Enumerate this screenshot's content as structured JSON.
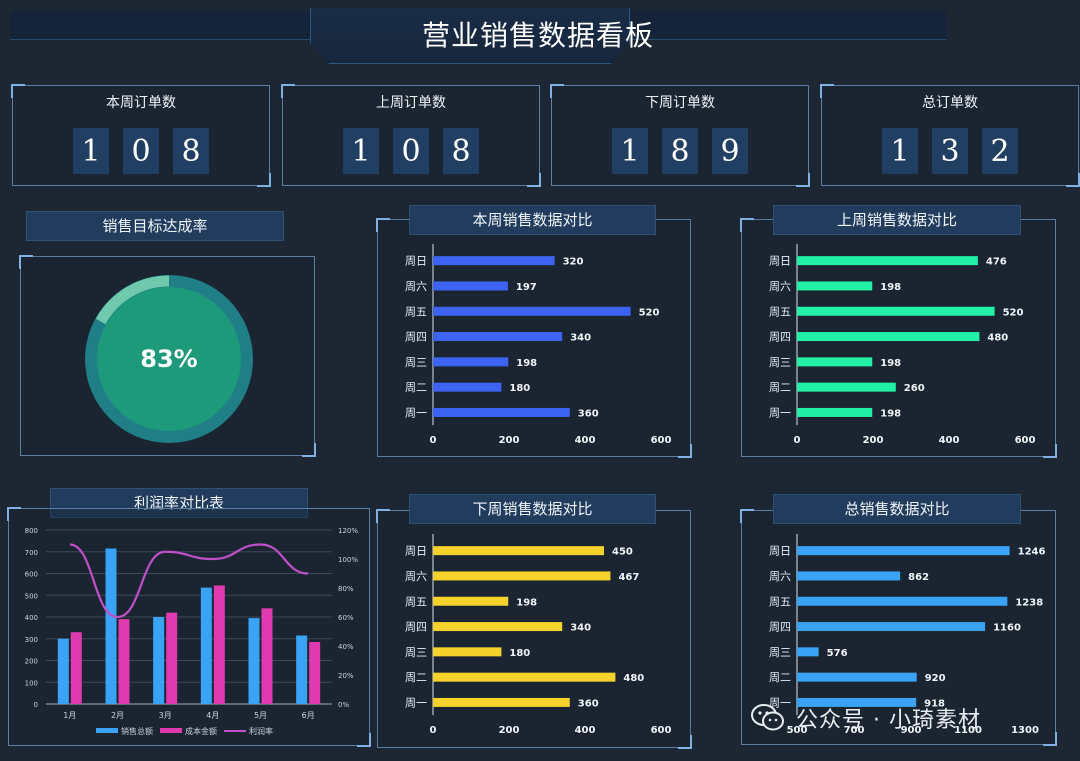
{
  "header": {
    "title": "营业销售数据看板"
  },
  "kpis": [
    {
      "label": "本周订单数",
      "digits": [
        "1",
        "0",
        "8"
      ]
    },
    {
      "label": "上周订单数",
      "digits": [
        "1",
        "0",
        "8"
      ]
    },
    {
      "label": "下周订单数",
      "digits": [
        "1",
        "8",
        "9"
      ]
    },
    {
      "label": "总订单数",
      "digits": [
        "1",
        "3",
        "2"
      ]
    }
  ],
  "gauge": {
    "title": "销售目标达成率",
    "value": 0.83,
    "label": "83%"
  },
  "panels": {
    "this_week": "本周销售数据对比",
    "last_week": "上周销售数据对比",
    "next_week": "下周销售数据对比",
    "total": "总销售数据对比",
    "profit": "利润率对比表"
  },
  "chart_data": [
    {
      "type": "bar",
      "orientation": "horizontal",
      "title": "本周销售数据对比",
      "categories": [
        "周日",
        "周六",
        "周五",
        "周四",
        "周三",
        "周二",
        "周一"
      ],
      "values": [
        320,
        197,
        520,
        340,
        198,
        180,
        360
      ],
      "xlim": [
        0,
        600
      ],
      "xticks": [
        0,
        200,
        400,
        600
      ],
      "color": "#3d63f2"
    },
    {
      "type": "bar",
      "orientation": "horizontal",
      "title": "上周销售数据对比",
      "categories": [
        "周日",
        "周六",
        "周五",
        "周四",
        "周三",
        "周二",
        "周一"
      ],
      "values": [
        476,
        198,
        520,
        480,
        198,
        260,
        198
      ],
      "xlim": [
        0,
        600
      ],
      "xticks": [
        0,
        200,
        400,
        600
      ],
      "color": "#21f0a6"
    },
    {
      "type": "bar",
      "orientation": "horizontal",
      "title": "下周销售数据对比",
      "categories": [
        "周日",
        "周六",
        "周五",
        "周四",
        "周三",
        "周二",
        "周一"
      ],
      "values": [
        450,
        467,
        198,
        340,
        180,
        480,
        360
      ],
      "xlim": [
        0,
        600
      ],
      "xticks": [
        0,
        200,
        400,
        600
      ],
      "color": "#f5d22c"
    },
    {
      "type": "bar",
      "orientation": "horizontal",
      "title": "总销售数据对比",
      "categories": [
        "周日",
        "周六",
        "周五",
        "周四",
        "周三",
        "周二",
        "周一"
      ],
      "values": [
        1246,
        862,
        1238,
        1160,
        576,
        920,
        918
      ],
      "xlim": [
        500,
        1300
      ],
      "xticks": [
        500,
        700,
        900,
        1100,
        1300
      ],
      "color": "#3aa3f5"
    },
    {
      "type": "bar",
      "title": "利润率对比表",
      "categories": [
        "1月",
        "2月",
        "3月",
        "4月",
        "5月",
        "6月"
      ],
      "series": [
        {
          "name": "销售总额",
          "values": [
            300,
            715,
            400,
            535,
            395,
            315
          ],
          "axis": "left",
          "color": "#3aa3f5"
        },
        {
          "name": "成本金额",
          "values": [
            330,
            390,
            420,
            545,
            440,
            285
          ],
          "axis": "left",
          "color": "#e03ab0"
        },
        {
          "name": "利润率",
          "type": "line",
          "values": [
            110,
            60,
            105,
            100,
            110,
            90
          ],
          "unit": "%",
          "axis": "right",
          "color": "#c04fc8"
        }
      ],
      "ylim": [
        0,
        800
      ],
      "yticks": [
        0,
        100,
        200,
        300,
        400,
        500,
        600,
        700,
        800
      ],
      "y2lim": [
        0,
        120
      ],
      "y2ticks": [
        "0%",
        "20%",
        "40%",
        "60%",
        "80%",
        "100%",
        "120%"
      ],
      "grid": true,
      "legend": "bottom"
    }
  ],
  "watermark": {
    "text": "公众号 · 小琦素材",
    "icon": "wechat-icon"
  }
}
